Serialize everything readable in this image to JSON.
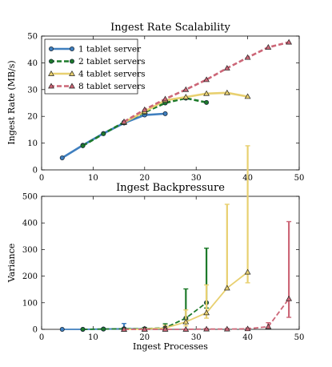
{
  "chart_data": [
    {
      "type": "line",
      "title": "Ingest Rate Scalability",
      "xlabel": "",
      "ylabel": "Ingest Rate (MB/s)",
      "xlim": [
        0,
        50
      ],
      "ylim": [
        0,
        50
      ],
      "xticks": [
        "0",
        "10",
        "20",
        "30",
        "40",
        "50"
      ],
      "yticks": [
        "0",
        "10",
        "20",
        "30",
        "40",
        "50"
      ],
      "legend_position": "top-left",
      "series": [
        {
          "name": "1 tablet server",
          "color": "#3f7fbf",
          "style": "solid",
          "marker": "circle",
          "x": [
            4,
            8,
            12,
            16,
            20,
            24
          ],
          "y": [
            4.5,
            9.2,
            13.6,
            17.5,
            20.5,
            21.0
          ]
        },
        {
          "name": "2 tablet servers",
          "color": "#1d7a2a",
          "style": "dashed",
          "marker": "circle",
          "x": [
            8,
            12,
            16,
            20,
            24,
            28,
            32
          ],
          "y": [
            9.0,
            13.5,
            17.8,
            21.5,
            25.0,
            26.8,
            25.2
          ]
        },
        {
          "name": "4 tablet servers",
          "color": "#e8d070",
          "style": "solid",
          "marker": "triangle",
          "x": [
            16,
            20,
            24,
            28,
            32,
            36,
            40
          ],
          "y": [
            17.7,
            21.8,
            26.0,
            27.2,
            28.5,
            28.8,
            27.4
          ]
        },
        {
          "name": "8 tablet servers",
          "color": "#cc6677",
          "style": "dashed",
          "marker": "triangle",
          "x": [
            16,
            20,
            24,
            28,
            32,
            36,
            40,
            44,
            48
          ],
          "y": [
            18.0,
            22.5,
            26.5,
            30.0,
            33.7,
            38.0,
            42.0,
            45.8,
            47.7
          ]
        }
      ]
    },
    {
      "type": "line",
      "title": "Ingest Backpressure",
      "xlabel": "Ingest Processes",
      "ylabel": "Variance",
      "xlim": [
        0,
        50
      ],
      "ylim": [
        0,
        500
      ],
      "xticks": [
        "0",
        "10",
        "20",
        "30",
        "40",
        "50"
      ],
      "yticks": [
        "0",
        "100",
        "200",
        "300",
        "400",
        "500"
      ],
      "series": [
        {
          "name": "1 tablet server",
          "color": "#3f7fbf",
          "style": "solid",
          "marker": "circle",
          "x": [
            4,
            8,
            12,
            16,
            20,
            24
          ],
          "y": [
            0,
            0,
            1,
            2,
            2,
            3
          ],
          "err_lo": [
            0,
            0,
            1,
            2,
            2,
            3
          ],
          "err_hi": [
            0,
            0,
            2,
            20,
            4,
            5
          ]
        },
        {
          "name": "2 tablet servers",
          "color": "#1d7a2a",
          "style": "dashed",
          "marker": "circle",
          "x": [
            8,
            12,
            16,
            20,
            24,
            28,
            32
          ],
          "y": [
            0,
            1,
            2,
            2,
            6,
            42,
            100
          ],
          "err_lo": [
            0,
            1,
            2,
            2,
            6,
            5,
            20
          ],
          "err_hi": [
            0,
            2,
            3,
            5,
            15,
            110,
            205
          ]
        },
        {
          "name": "4 tablet servers",
          "color": "#e8d070",
          "style": "solid",
          "marker": "triangle",
          "x": [
            16,
            20,
            24,
            28,
            32,
            36,
            40
          ],
          "y": [
            0,
            1,
            5,
            28,
            62,
            155,
            215
          ],
          "err_lo": [
            0,
            1,
            5,
            15,
            20,
            5,
            40
          ],
          "err_hi": [
            0,
            2,
            10,
            45,
            105,
            315,
            475
          ]
        },
        {
          "name": "8 tablet servers",
          "color": "#cc6677",
          "style": "dashed",
          "marker": "triangle",
          "x": [
            16,
            20,
            24,
            28,
            32,
            36,
            40,
            44,
            48
          ],
          "y": [
            0,
            0,
            0,
            0,
            1,
            1,
            2,
            10,
            115
          ],
          "err_lo": [
            0,
            0,
            0,
            0,
            1,
            1,
            2,
            5,
            70
          ],
          "err_hi": [
            0,
            0,
            0,
            0,
            2,
            2,
            3,
            15,
            290
          ]
        }
      ]
    }
  ]
}
